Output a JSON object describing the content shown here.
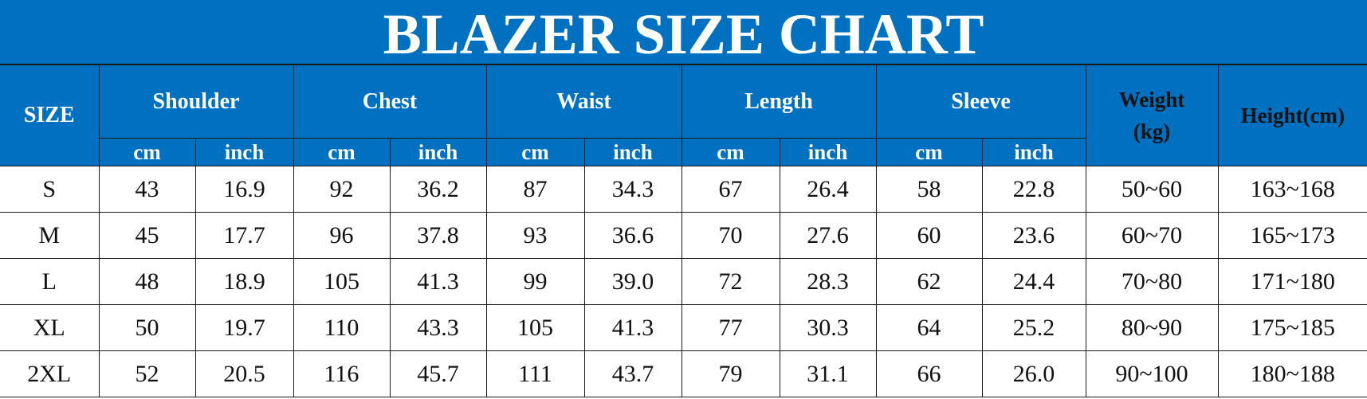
{
  "title": "BLAZER SIZE CHART",
  "colors": {
    "header_bg": "#0070c0",
    "header_text": "#ffffff",
    "header_text_dark": "#111111"
  },
  "headers": {
    "size": "SIZE",
    "groups": [
      "Shoulder",
      "Chest",
      "Waist",
      "Length",
      "Sleeve"
    ],
    "units": [
      "cm",
      "inch"
    ],
    "weight": "Weight (kg)",
    "height": "Height(cm)"
  },
  "rows": [
    [
      "S",
      "43",
      "16.9",
      "92",
      "36.2",
      "87",
      "34.3",
      "67",
      "26.4",
      "58",
      "22.8",
      "50~60",
      "163~168"
    ],
    [
      "M",
      "45",
      "17.7",
      "96",
      "37.8",
      "93",
      "36.6",
      "70",
      "27.6",
      "60",
      "23.6",
      "60~70",
      "165~173"
    ],
    [
      "L",
      "48",
      "18.9",
      "105",
      "41.3",
      "99",
      "39.0",
      "72",
      "28.3",
      "62",
      "24.4",
      "70~80",
      "171~180"
    ],
    [
      "XL",
      "50",
      "19.7",
      "110",
      "43.3",
      "105",
      "41.3",
      "77",
      "30.3",
      "64",
      "25.2",
      "80~90",
      "175~185"
    ],
    [
      "2XL",
      "52",
      "20.5",
      "116",
      "45.7",
      "111",
      "43.7",
      "79",
      "31.1",
      "66",
      "26.0",
      "90~100",
      "180~188"
    ]
  ]
}
